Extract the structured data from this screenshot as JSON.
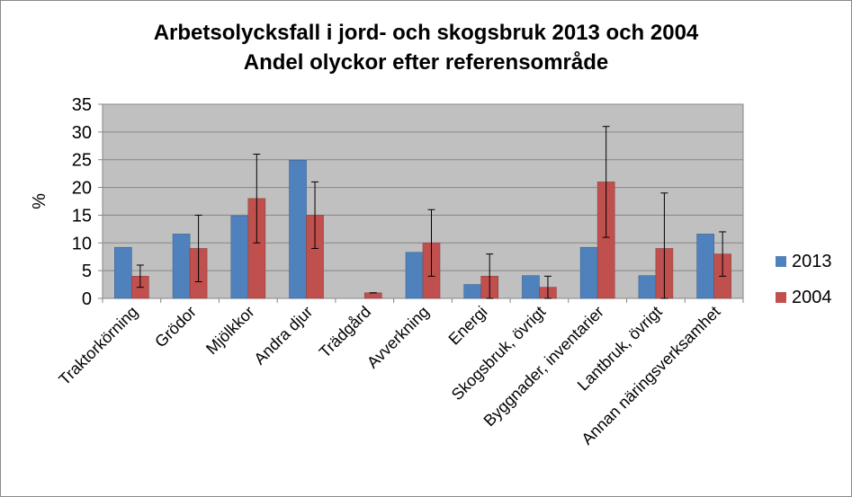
{
  "chart_data": {
    "type": "bar",
    "title": "Arbetsolycksfall i jord- och skogsbruk 2013 och 2004",
    "subtitle": "Andel olyckor efter referensområde",
    "ylabel": "%",
    "xlabel": "",
    "ylim": [
      0,
      35
    ],
    "yticks": [
      0,
      5,
      10,
      15,
      20,
      25,
      30,
      35
    ],
    "grid": true,
    "legend": "right",
    "categories": [
      "Traktorkörning",
      "Grödor",
      "Mjölkkor",
      "Andra djur",
      "Trädgård",
      "Avverkning",
      "Energi",
      "Skogsbruk, övrigt",
      "Byggnader, inventarier",
      "Lantbruk, övrigt",
      "Annan näringsverksamhet"
    ],
    "series": [
      {
        "name": "2013",
        "color": "#4F81BD",
        "values": [
          9.2,
          11.6,
          14.9,
          24.9,
          0,
          8.3,
          2.5,
          4.1,
          9.2,
          4.1,
          11.6
        ],
        "error": null
      },
      {
        "name": "2004",
        "color": "#C0504D",
        "values": [
          4,
          9,
          18,
          15,
          1,
          10,
          4,
          2,
          21,
          9,
          8
        ],
        "error": [
          [
            2,
            6
          ],
          [
            3,
            15
          ],
          [
            10,
            26
          ],
          [
            9,
            21
          ],
          [
            1,
            1
          ],
          [
            4,
            16
          ],
          [
            0,
            8
          ],
          [
            0,
            4
          ],
          [
            11,
            31
          ],
          [
            0,
            19
          ],
          [
            4,
            12
          ]
        ]
      }
    ]
  }
}
